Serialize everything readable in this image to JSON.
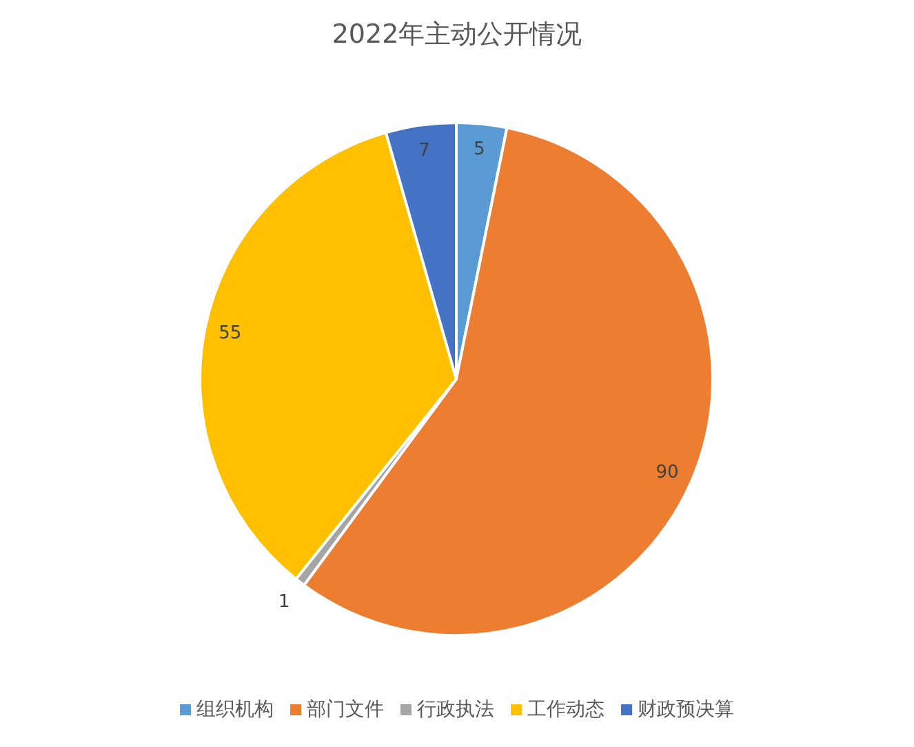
{
  "chart_data": {
    "type": "pie",
    "title": "2022年主动公开情况",
    "categories": [
      "组织机构",
      "部门文件",
      "行政执法",
      "工作动态",
      "财政预决算"
    ],
    "values": [
      5,
      90,
      1,
      55,
      7
    ],
    "colors": [
      "#5b9bd5",
      "#ed7d31",
      "#a5a5a5",
      "#ffc000",
      "#4472c4"
    ],
    "data_labels": true,
    "legend": "bottom"
  }
}
